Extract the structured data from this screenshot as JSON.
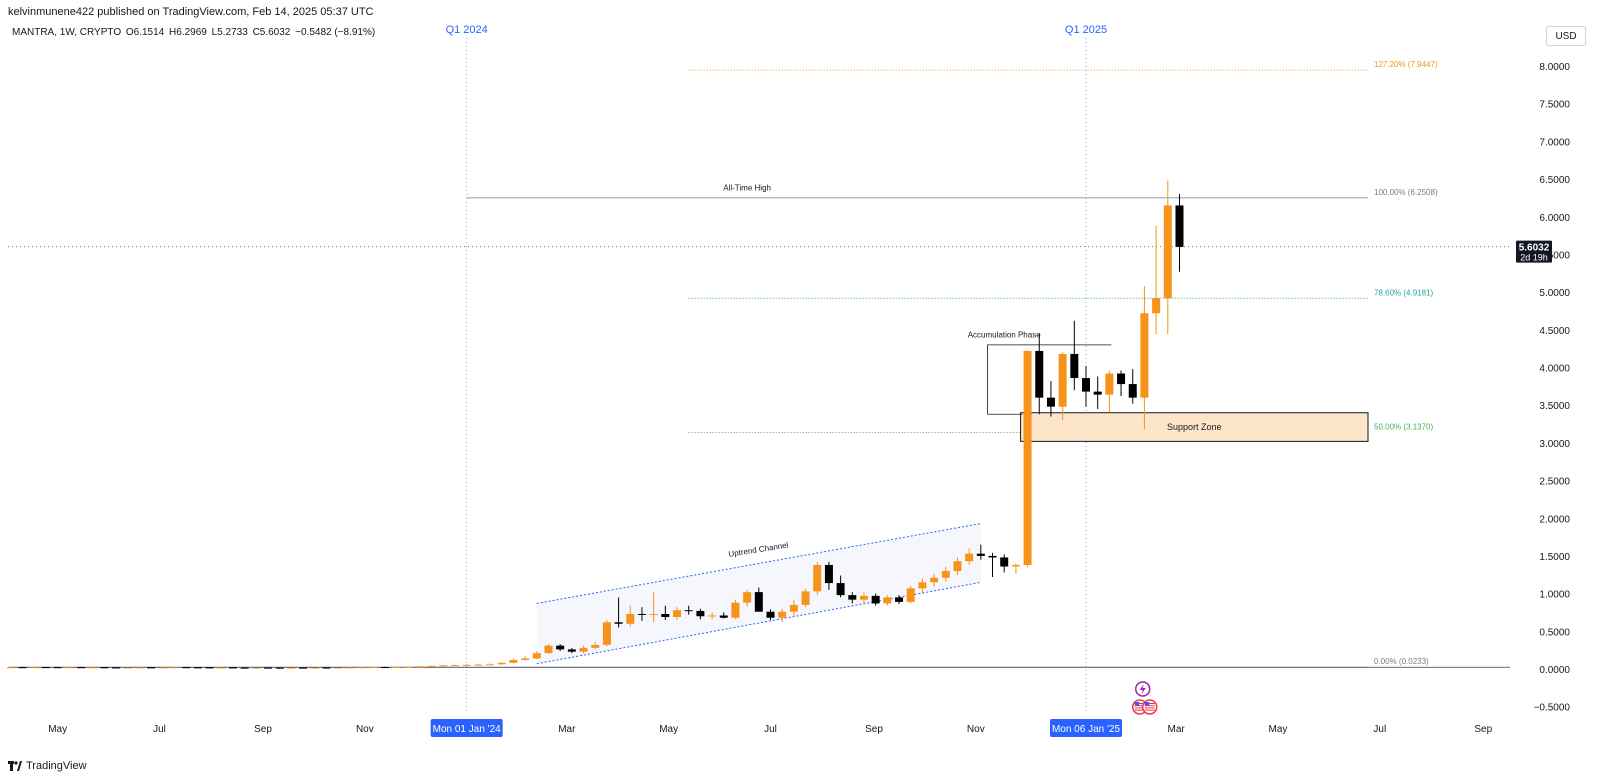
{
  "header": {
    "publisher": "kelvinmunene422 published on TradingView.com, Feb 14, 2025 05:37 UTC",
    "symbol": "MANTRA, 1W, CRYPTO",
    "open": "O6.1514",
    "high": "H6.2969",
    "low": "L5.2733",
    "close": "C5.6032",
    "change": "−0.5482 (−8.91%)",
    "currency": "USD"
  },
  "brand": {
    "name": "TradingView",
    "icon": "tradingview-logo-icon"
  },
  "colors": {
    "up": "#f7931a",
    "down": "#000000",
    "fib_127": "#f7931a",
    "fib_100": "#787b86",
    "fib_786": "#26a69a",
    "fib_50": "#4caf50",
    "fib_0": "#787b86",
    "quarter_marker": "#2962ff",
    "channel": "#2962ff",
    "support_fill": "#fce5c8"
  },
  "chart_data": {
    "type": "candlestick",
    "yaxis": {
      "ylim": [
        -0.6,
        8.6
      ],
      "ticks": [
        "8.0000",
        "7.5000",
        "7.0000",
        "6.5000",
        "6.0000",
        "5.5000",
        "5.0000",
        "4.5000",
        "4.0000",
        "3.5000",
        "3.0000",
        "2.5000",
        "2.0000",
        "1.5000",
        "1.0000",
        "0.5000",
        "0.0000",
        "−0.5000"
      ],
      "tick_values": [
        8.0,
        7.5,
        7.0,
        6.5,
        6.0,
        5.5,
        5.0,
        4.5,
        4.0,
        3.5,
        3.0,
        2.5,
        2.0,
        1.5,
        1.0,
        0.5,
        0.0,
        -0.5
      ]
    },
    "xaxis": {
      "ticks": [
        {
          "label": "May",
          "date": "2023-05-01"
        },
        {
          "label": "Jul",
          "date": "2023-07-01"
        },
        {
          "label": "Sep",
          "date": "2023-09-01"
        },
        {
          "label": "Nov",
          "date": "2023-11-01"
        },
        {
          "label": "Mar",
          "date": "2024-03-01"
        },
        {
          "label": "May",
          "date": "2024-05-01"
        },
        {
          "label": "Jul",
          "date": "2024-07-01"
        },
        {
          "label": "Sep",
          "date": "2024-09-01"
        },
        {
          "label": "Nov",
          "date": "2024-11-01"
        },
        {
          "label": "Mar",
          "date": "2025-03-01"
        },
        {
          "label": "May",
          "date": "2025-05-01"
        },
        {
          "label": "Jul",
          "date": "2025-07-01"
        },
        {
          "label": "Sep",
          "date": "2025-09-01"
        }
      ],
      "highlights": [
        {
          "label": "Mon 01 Jan '24",
          "date": "2024-01-01"
        },
        {
          "label": "Mon 06 Jan '25",
          "date": "2025-01-06"
        }
      ]
    },
    "period_markers": [
      {
        "label": "Q1 2024",
        "date": "2024-01-01"
      },
      {
        "label": "Q1 2025",
        "date": "2025-01-06"
      }
    ],
    "last_price": {
      "value": 5.6032,
      "label": "5.6032",
      "countdown": "2d 19h"
    },
    "fib_levels": [
      {
        "level": "127.20% (7.9447)",
        "value": 7.9447,
        "color_key": "fib_127",
        "start": "2024-05-13"
      },
      {
        "level": "100.00% (6.2508)",
        "value": 6.2508,
        "color_key": "fib_100",
        "start": "2024-01-01"
      },
      {
        "level": "78.60% (4.9181)",
        "value": 4.9181,
        "color_key": "fib_786",
        "start": "2024-05-13"
      },
      {
        "level": "50.00% (3.1370)",
        "value": 3.137,
        "color_key": "fib_50",
        "start": "2024-05-13"
      },
      {
        "level": "0.00% (0.0233)",
        "value": 0.0233,
        "color_key": "fib_0",
        "start": "2023-04-03"
      }
    ],
    "annotations": [
      {
        "text": "All-Time High",
        "date": "2024-06-17",
        "value": 6.35
      },
      {
        "text": "Accumulation Phase",
        "date": "2024-11-18",
        "value": 4.4
      },
      {
        "text": "Uptrend Channel",
        "date": "2024-06-24",
        "value": 1.55
      }
    ],
    "support_zone": {
      "label": "Support Zone",
      "start": "2024-12-02",
      "end": "2025-06-09",
      "low": 3.02,
      "high": 3.4
    },
    "accumulation_box": {
      "start": "2024-11-11",
      "end": "2025-01-20",
      "low": 3.38,
      "high": 4.3
    },
    "uptrend_channel": {
      "upper": [
        {
          "date": "2024-02-12",
          "value": 0.87
        },
        {
          "date": "2024-11-04",
          "value": 1.93
        }
      ],
      "lower": [
        {
          "date": "2024-02-12",
          "value": 0.07
        },
        {
          "date": "2024-11-04",
          "value": 1.15
        }
      ]
    },
    "candles": [
      {
        "date": "2023-04-03",
        "o": 0.022,
        "h": 0.026,
        "l": 0.019,
        "c": 0.024
      },
      {
        "date": "2023-04-10",
        "o": 0.024,
        "h": 0.028,
        "l": 0.021,
        "c": 0.023
      },
      {
        "date": "2023-04-17",
        "o": 0.023,
        "h": 0.027,
        "l": 0.02,
        "c": 0.025
      },
      {
        "date": "2023-04-24",
        "o": 0.025,
        "h": 0.029,
        "l": 0.022,
        "c": 0.024
      },
      {
        "date": "2023-05-01",
        "o": 0.024,
        "h": 0.027,
        "l": 0.021,
        "c": 0.023
      },
      {
        "date": "2023-05-08",
        "o": 0.023,
        "h": 0.026,
        "l": 0.02,
        "c": 0.024
      },
      {
        "date": "2023-05-15",
        "o": 0.024,
        "h": 0.027,
        "l": 0.021,
        "c": 0.022
      },
      {
        "date": "2023-05-22",
        "o": 0.022,
        "h": 0.025,
        "l": 0.019,
        "c": 0.023
      },
      {
        "date": "2023-05-29",
        "o": 0.023,
        "h": 0.026,
        "l": 0.02,
        "c": 0.021
      },
      {
        "date": "2023-06-05",
        "o": 0.021,
        "h": 0.024,
        "l": 0.017,
        "c": 0.019
      },
      {
        "date": "2023-06-12",
        "o": 0.019,
        "h": 0.022,
        "l": 0.016,
        "c": 0.02
      },
      {
        "date": "2023-06-19",
        "o": 0.02,
        "h": 0.024,
        "l": 0.018,
        "c": 0.022
      },
      {
        "date": "2023-06-26",
        "o": 0.022,
        "h": 0.025,
        "l": 0.019,
        "c": 0.021
      },
      {
        "date": "2023-07-03",
        "o": 0.021,
        "h": 0.024,
        "l": 0.018,
        "c": 0.022
      },
      {
        "date": "2023-07-10",
        "o": 0.022,
        "h": 0.026,
        "l": 0.02,
        "c": 0.024
      },
      {
        "date": "2023-07-17",
        "o": 0.024,
        "h": 0.027,
        "l": 0.021,
        "c": 0.022
      },
      {
        "date": "2023-07-24",
        "o": 0.022,
        "h": 0.025,
        "l": 0.019,
        "c": 0.021
      },
      {
        "date": "2023-07-31",
        "o": 0.021,
        "h": 0.024,
        "l": 0.018,
        "c": 0.02
      },
      {
        "date": "2023-08-07",
        "o": 0.02,
        "h": 0.023,
        "l": 0.017,
        "c": 0.021
      },
      {
        "date": "2023-08-14",
        "o": 0.021,
        "h": 0.024,
        "l": 0.016,
        "c": 0.018
      },
      {
        "date": "2023-08-21",
        "o": 0.018,
        "h": 0.021,
        "l": 0.015,
        "c": 0.017
      },
      {
        "date": "2023-08-28",
        "o": 0.017,
        "h": 0.02,
        "l": 0.015,
        "c": 0.018
      },
      {
        "date": "2023-09-04",
        "o": 0.018,
        "h": 0.021,
        "l": 0.015,
        "c": 0.017
      },
      {
        "date": "2023-09-11",
        "o": 0.017,
        "h": 0.02,
        "l": 0.014,
        "c": 0.016
      },
      {
        "date": "2023-09-18",
        "o": 0.016,
        "h": 0.019,
        "l": 0.014,
        "c": 0.018
      },
      {
        "date": "2023-09-25",
        "o": 0.018,
        "h": 0.021,
        "l": 0.015,
        "c": 0.017
      },
      {
        "date": "2023-10-02",
        "o": 0.017,
        "h": 0.02,
        "l": 0.015,
        "c": 0.019
      },
      {
        "date": "2023-10-09",
        "o": 0.019,
        "h": 0.022,
        "l": 0.016,
        "c": 0.018
      },
      {
        "date": "2023-10-16",
        "o": 0.018,
        "h": 0.021,
        "l": 0.016,
        "c": 0.02
      },
      {
        "date": "2023-10-23",
        "o": 0.02,
        "h": 0.024,
        "l": 0.018,
        "c": 0.022
      },
      {
        "date": "2023-10-30",
        "o": 0.022,
        "h": 0.026,
        "l": 0.02,
        "c": 0.024
      },
      {
        "date": "2023-11-06",
        "o": 0.024,
        "h": 0.028,
        "l": 0.021,
        "c": 0.026
      },
      {
        "date": "2023-11-13",
        "o": 0.026,
        "h": 0.03,
        "l": 0.023,
        "c": 0.025
      },
      {
        "date": "2023-11-20",
        "o": 0.025,
        "h": 0.03,
        "l": 0.022,
        "c": 0.028
      },
      {
        "date": "2023-11-27",
        "o": 0.028,
        "h": 0.034,
        "l": 0.025,
        "c": 0.031
      },
      {
        "date": "2023-12-04",
        "o": 0.031,
        "h": 0.038,
        "l": 0.028,
        "c": 0.036
      },
      {
        "date": "2023-12-11",
        "o": 0.036,
        "h": 0.045,
        "l": 0.032,
        "c": 0.042
      },
      {
        "date": "2023-12-18",
        "o": 0.042,
        "h": 0.052,
        "l": 0.038,
        "c": 0.048
      },
      {
        "date": "2023-12-25",
        "o": 0.048,
        "h": 0.058,
        "l": 0.043,
        "c": 0.052
      },
      {
        "date": "2024-01-01",
        "o": 0.052,
        "h": 0.065,
        "l": 0.047,
        "c": 0.056
      },
      {
        "date": "2024-01-08",
        "o": 0.056,
        "h": 0.07,
        "l": 0.05,
        "c": 0.058
      },
      {
        "date": "2024-01-15",
        "o": 0.058,
        "h": 0.075,
        "l": 0.052,
        "c": 0.062
      },
      {
        "date": "2024-01-22",
        "o": 0.062,
        "h": 0.09,
        "l": 0.056,
        "c": 0.082
      },
      {
        "date": "2024-01-29",
        "o": 0.082,
        "h": 0.14,
        "l": 0.075,
        "c": 0.12
      },
      {
        "date": "2024-02-05",
        "o": 0.12,
        "h": 0.17,
        "l": 0.11,
        "c": 0.14
      },
      {
        "date": "2024-02-12",
        "o": 0.14,
        "h": 0.24,
        "l": 0.13,
        "c": 0.21
      },
      {
        "date": "2024-02-19",
        "o": 0.21,
        "h": 0.33,
        "l": 0.2,
        "c": 0.31
      },
      {
        "date": "2024-02-26",
        "o": 0.31,
        "h": 0.33,
        "l": 0.24,
        "c": 0.26
      },
      {
        "date": "2024-03-04",
        "o": 0.26,
        "h": 0.28,
        "l": 0.21,
        "c": 0.23
      },
      {
        "date": "2024-03-11",
        "o": 0.23,
        "h": 0.31,
        "l": 0.21,
        "c": 0.28
      },
      {
        "date": "2024-03-18",
        "o": 0.28,
        "h": 0.36,
        "l": 0.26,
        "c": 0.32
      },
      {
        "date": "2024-03-25",
        "o": 0.32,
        "h": 0.65,
        "l": 0.3,
        "c": 0.62
      },
      {
        "date": "2024-04-01",
        "o": 0.62,
        "h": 0.95,
        "l": 0.55,
        "c": 0.6
      },
      {
        "date": "2024-04-08",
        "o": 0.6,
        "h": 0.84,
        "l": 0.56,
        "c": 0.73
      },
      {
        "date": "2024-04-15",
        "o": 0.73,
        "h": 0.82,
        "l": 0.64,
        "c": 0.72
      },
      {
        "date": "2024-04-22",
        "o": 0.72,
        "h": 1.02,
        "l": 0.62,
        "c": 0.73
      },
      {
        "date": "2024-04-29",
        "o": 0.73,
        "h": 0.84,
        "l": 0.65,
        "c": 0.69
      },
      {
        "date": "2024-05-06",
        "o": 0.69,
        "h": 0.82,
        "l": 0.65,
        "c": 0.78
      },
      {
        "date": "2024-05-13",
        "o": 0.78,
        "h": 0.84,
        "l": 0.72,
        "c": 0.77
      },
      {
        "date": "2024-05-20",
        "o": 0.77,
        "h": 0.8,
        "l": 0.66,
        "c": 0.7
      },
      {
        "date": "2024-05-27",
        "o": 0.7,
        "h": 0.75,
        "l": 0.66,
        "c": 0.71
      },
      {
        "date": "2024-06-03",
        "o": 0.71,
        "h": 0.75,
        "l": 0.67,
        "c": 0.68
      },
      {
        "date": "2024-06-10",
        "o": 0.68,
        "h": 0.92,
        "l": 0.66,
        "c": 0.88
      },
      {
        "date": "2024-06-17",
        "o": 0.88,
        "h": 1.05,
        "l": 0.83,
        "c": 1.02
      },
      {
        "date": "2024-06-24",
        "o": 1.02,
        "h": 1.08,
        "l": 0.85,
        "c": 0.76
      },
      {
        "date": "2024-07-01",
        "o": 0.76,
        "h": 0.79,
        "l": 0.65,
        "c": 0.68
      },
      {
        "date": "2024-07-08",
        "o": 0.68,
        "h": 0.8,
        "l": 0.62,
        "c": 0.76
      },
      {
        "date": "2024-07-15",
        "o": 0.76,
        "h": 0.92,
        "l": 0.7,
        "c": 0.85
      },
      {
        "date": "2024-07-22",
        "o": 0.85,
        "h": 1.06,
        "l": 0.82,
        "c": 1.03
      },
      {
        "date": "2024-07-29",
        "o": 1.03,
        "h": 1.42,
        "l": 0.98,
        "c": 1.38
      },
      {
        "date": "2024-08-05",
        "o": 1.38,
        "h": 1.42,
        "l": 1.05,
        "c": 1.14
      },
      {
        "date": "2024-08-12",
        "o": 1.14,
        "h": 1.24,
        "l": 0.95,
        "c": 0.98
      },
      {
        "date": "2024-08-19",
        "o": 0.98,
        "h": 1.02,
        "l": 0.87,
        "c": 0.92
      },
      {
        "date": "2024-08-26",
        "o": 0.92,
        "h": 1.02,
        "l": 0.86,
        "c": 0.97
      },
      {
        "date": "2024-09-02",
        "o": 0.97,
        "h": 1.0,
        "l": 0.84,
        "c": 0.87
      },
      {
        "date": "2024-09-09",
        "o": 0.87,
        "h": 0.98,
        "l": 0.84,
        "c": 0.95
      },
      {
        "date": "2024-09-16",
        "o": 0.95,
        "h": 0.98,
        "l": 0.86,
        "c": 0.89
      },
      {
        "date": "2024-09-23",
        "o": 0.89,
        "h": 1.1,
        "l": 0.87,
        "c": 1.07
      },
      {
        "date": "2024-09-30",
        "o": 1.07,
        "h": 1.2,
        "l": 1.0,
        "c": 1.15
      },
      {
        "date": "2024-10-07",
        "o": 1.15,
        "h": 1.26,
        "l": 1.09,
        "c": 1.21
      },
      {
        "date": "2024-10-14",
        "o": 1.21,
        "h": 1.36,
        "l": 1.16,
        "c": 1.3
      },
      {
        "date": "2024-10-21",
        "o": 1.3,
        "h": 1.48,
        "l": 1.25,
        "c": 1.43
      },
      {
        "date": "2024-10-28",
        "o": 1.43,
        "h": 1.6,
        "l": 1.38,
        "c": 1.53
      },
      {
        "date": "2024-11-04",
        "o": 1.53,
        "h": 1.65,
        "l": 1.45,
        "c": 1.5
      },
      {
        "date": "2024-11-11",
        "o": 1.5,
        "h": 1.54,
        "l": 1.22,
        "c": 1.48
      },
      {
        "date": "2024-11-18",
        "o": 1.48,
        "h": 1.52,
        "l": 1.28,
        "c": 1.36
      },
      {
        "date": "2024-11-25",
        "o": 1.36,
        "h": 1.4,
        "l": 1.26,
        "c": 1.38
      },
      {
        "date": "2024-12-02",
        "o": 1.38,
        "h": 4.22,
        "l": 1.35,
        "c": 4.22
      },
      {
        "date": "2024-12-09",
        "o": 4.22,
        "h": 4.45,
        "l": 3.38,
        "c": 3.6
      },
      {
        "date": "2024-12-16",
        "o": 3.6,
        "h": 3.82,
        "l": 3.35,
        "c": 3.48
      },
      {
        "date": "2024-12-23",
        "o": 3.48,
        "h": 4.2,
        "l": 3.3,
        "c": 4.18
      },
      {
        "date": "2024-12-30",
        "o": 4.18,
        "h": 4.62,
        "l": 3.7,
        "c": 3.86
      },
      {
        "date": "2025-01-06",
        "o": 3.86,
        "h": 4.02,
        "l": 3.48,
        "c": 3.68
      },
      {
        "date": "2025-01-13",
        "o": 3.68,
        "h": 3.88,
        "l": 3.45,
        "c": 3.64
      },
      {
        "date": "2025-01-20",
        "o": 3.64,
        "h": 3.96,
        "l": 3.4,
        "c": 3.92
      },
      {
        "date": "2025-01-27",
        "o": 3.92,
        "h": 3.96,
        "l": 3.62,
        "c": 3.78
      },
      {
        "date": "2025-02-03",
        "o": 3.78,
        "h": 3.98,
        "l": 3.52,
        "c": 3.6
      },
      {
        "date": "2025-02-10",
        "o": 3.6,
        "h": 5.08,
        "l": 3.18,
        "c": 4.72
      },
      {
        "date": "2025-02-17",
        "o": 4.72,
        "h": 5.88,
        "l": 4.44,
        "c": 4.92
      },
      {
        "date": "2025-02-24",
        "o": 4.92,
        "h": 6.48,
        "l": 4.44,
        "c": 6.15
      },
      {
        "date": "2025-03-03",
        "o": 6.15,
        "h": 6.3,
        "l": 5.27,
        "c": 5.6
      }
    ]
  }
}
